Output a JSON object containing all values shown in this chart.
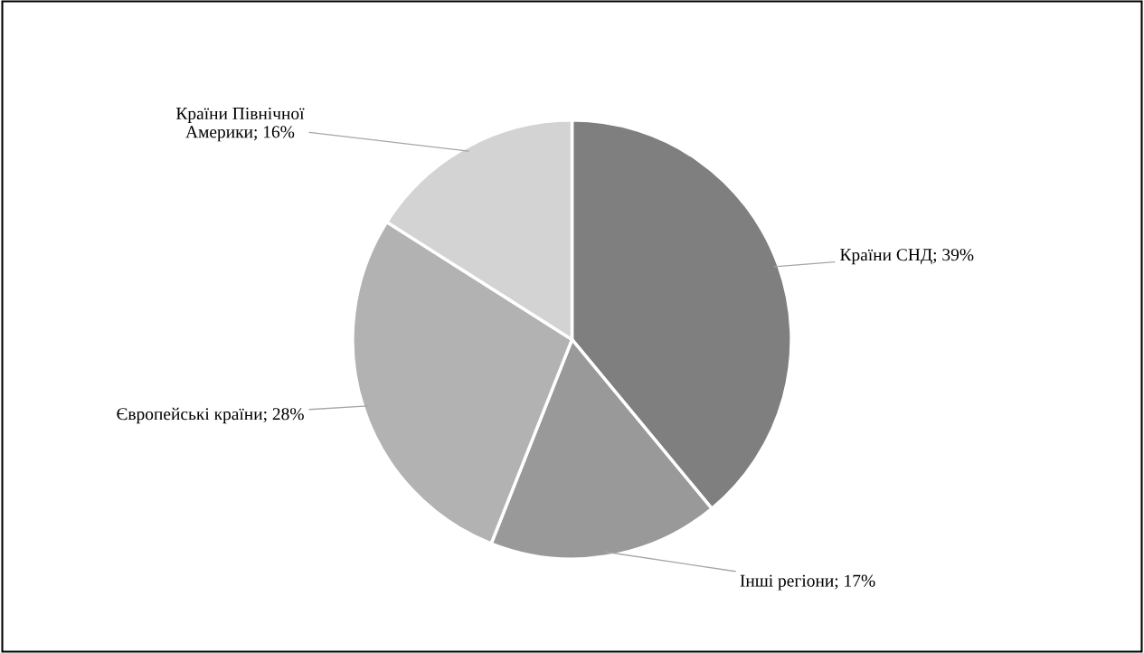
{
  "chart_data": {
    "type": "pie",
    "categories": [
      "Країни СНД",
      "Інші регіони",
      "Європейські країни",
      "Країни Північної Америки"
    ],
    "values": [
      39,
      17,
      28,
      16
    ],
    "value_labels": [
      "39%",
      "17%",
      "28%",
      "16%"
    ],
    "colors": [
      "#7f7f7f",
      "#999999",
      "#b2b2b2",
      "#d3d3d3"
    ],
    "legend": false
  }
}
